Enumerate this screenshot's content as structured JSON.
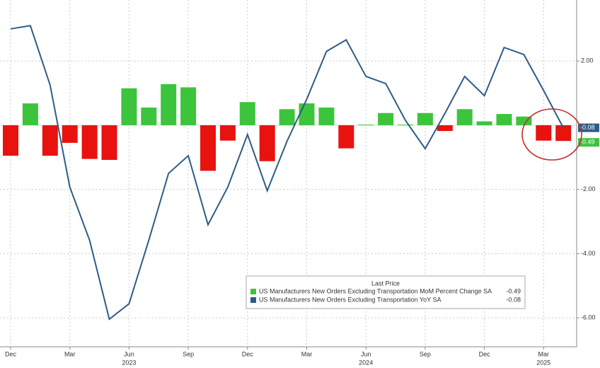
{
  "chart_data": {
    "type": "combo",
    "categories": [
      "Dec",
      null,
      null,
      "Mar",
      null,
      null,
      "Jun",
      null,
      null,
      "Sep",
      null,
      null,
      "Dec",
      null,
      null,
      "Mar",
      null,
      null,
      "Jun",
      null,
      null,
      "Sep",
      null,
      null,
      "Dec",
      null,
      null,
      "Mar",
      null
    ],
    "year_categories": [
      null,
      null,
      null,
      null,
      null,
      null,
      "2023",
      null,
      null,
      null,
      null,
      null,
      null,
      null,
      null,
      null,
      null,
      null,
      "2024",
      null,
      null,
      null,
      null,
      null,
      null,
      null,
      null,
      "2025",
      null
    ],
    "series": [
      {
        "name": "US Manufacturers New Orders Excluding Transportation MoM Percent Change SA",
        "type": "bar",
        "positive_color": "#3cc43c",
        "negative_color": "#e8130f",
        "color": "#3cc43c",
        "values": [
          -0.95,
          0.68,
          -0.95,
          -0.55,
          -1.05,
          -1.08,
          1.15,
          0.55,
          1.28,
          1.18,
          -1.42,
          -0.48,
          0.72,
          -1.12,
          0.5,
          0.68,
          0.55,
          -0.72,
          0.02,
          0.38,
          0.02,
          0.38,
          -0.18,
          0.5,
          0.12,
          0.35,
          0.27,
          -0.48,
          -0.49
        ],
        "last_value_label": "-0.49"
      },
      {
        "name": "US Manufacturers New Orders Excluding Transportation YoY SA",
        "type": "line",
        "color": "#2e5c86",
        "values": [
          3.0,
          3.1,
          1.25,
          -1.93,
          -3.58,
          -6.04,
          -5.56,
          -3.58,
          -1.5,
          -0.95,
          -3.1,
          -1.93,
          -0.29,
          -2.04,
          -0.5,
          0.81,
          2.3,
          2.66,
          1.52,
          1.3,
          0.15,
          -0.73,
          0.37,
          1.52,
          0.92,
          2.42,
          2.2,
          1.08,
          -0.08
        ],
        "last_value_label": "-0.08"
      }
    ],
    "legend_title": "Last Price",
    "ylim": [
      -6.9,
      3.9
    ],
    "yticks": [
      {
        "value": 2,
        "label": "2.00"
      },
      {
        "value": -2,
        "label": "-2.00"
      },
      {
        "value": -4,
        "label": "-4.00"
      },
      {
        "value": -6,
        "label": "-6.00"
      }
    ],
    "grid": true
  }
}
